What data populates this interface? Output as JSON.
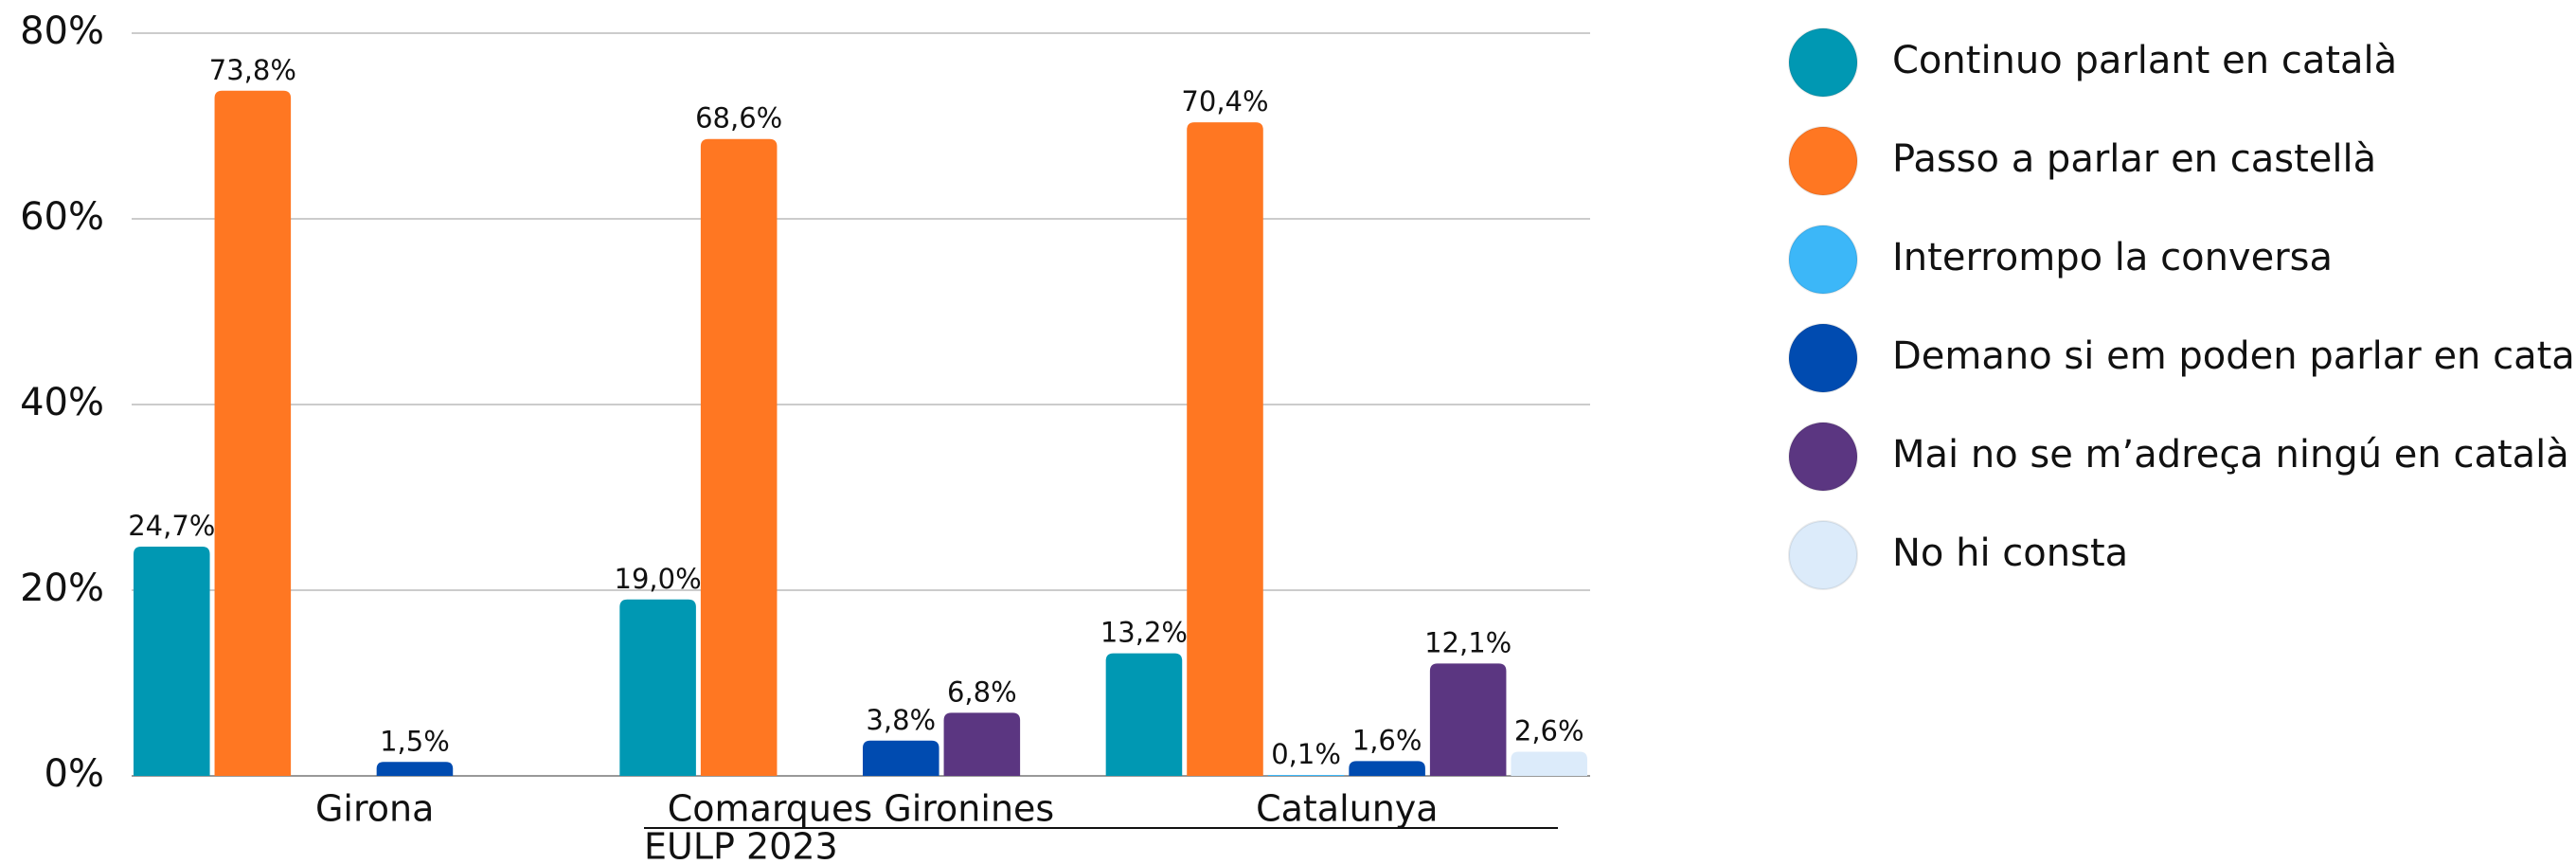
{
  "chart_data": {
    "type": "bar",
    "categories": [
      "Girona",
      "Comarques Gironines",
      "Catalunya"
    ],
    "series": [
      {
        "name": "Continuo parlant en català",
        "color": "#0098b3",
        "values": [
          24.7,
          19.0,
          13.2
        ],
        "value_labels": [
          "24,7%",
          "19,0%",
          "13,2%"
        ]
      },
      {
        "name": "Passo a parlar en castellà",
        "color": "#ff7722",
        "values": [
          73.8,
          68.6,
          70.4
        ],
        "value_labels": [
          "73,8%",
          "68,6%",
          "70,4%"
        ]
      },
      {
        "name": "Interrompo la conversa",
        "color": "#3cb7f8",
        "values": [
          null,
          null,
          0.1
        ],
        "value_labels": [
          null,
          null,
          "0,1%"
        ]
      },
      {
        "name": "Demano si em poden parlar en català",
        "color": "#004bb0",
        "values": [
          1.5,
          3.8,
          1.6
        ],
        "value_labels": [
          "1,5%",
          "3,8%",
          "1,6%"
        ]
      },
      {
        "name": "Mai no se m’adreça ningú en català",
        "color": "#5b3681",
        "values": [
          null,
          6.8,
          12.1
        ],
        "value_labels": [
          null,
          "6,8%",
          "12,1%"
        ]
      },
      {
        "name": "No hi consta",
        "color": "#dcebfa",
        "values": [
          null,
          null,
          2.6
        ],
        "value_labels": [
          null,
          null,
          "2,6%"
        ]
      }
    ],
    "ylim": [
      0,
      80
    ],
    "yticks": [
      {
        "value": 0,
        "label": "0%"
      },
      {
        "value": 20,
        "label": "20%"
      },
      {
        "value": 40,
        "label": "40%"
      },
      {
        "value": 60,
        "label": "60%"
      },
      {
        "value": 80,
        "label": "80%"
      }
    ],
    "grid": true,
    "legend": "right",
    "source": "EULP 2023"
  }
}
